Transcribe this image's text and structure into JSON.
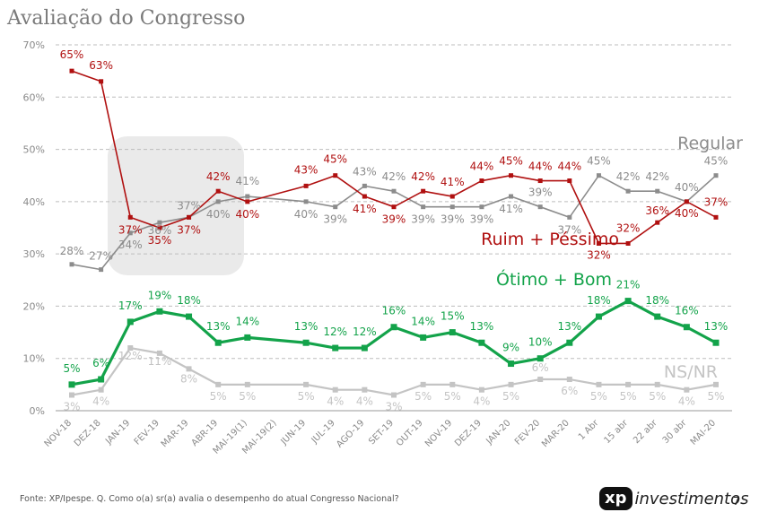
{
  "title": "Avaliação do Congresso",
  "footer": "Fonte: XP/Ipespe. Q. Como o(a) sr(a) avalia o desempenho do atual Congresso Nacional?",
  "logo": {
    "badge": "xp",
    "word": "investimentos"
  },
  "page_number": "7",
  "chart_data": {
    "type": "line",
    "ylim": [
      0,
      70
    ],
    "yticks": [
      0,
      10,
      20,
      30,
      40,
      50,
      60,
      70
    ],
    "ytick_labels": [
      "0%",
      "10%",
      "20%",
      "30%",
      "40%",
      "50%",
      "60%",
      "70%"
    ],
    "grid": "dashed-horizontal",
    "categories": [
      "NOV-18",
      "DEZ-18",
      "JAN-19",
      "FEV-19",
      "MAR-19",
      "ABR-19",
      "MAI-19(1)",
      "MAI-19(2)",
      "JUN-19",
      "JUL-19",
      "AGO-19",
      "SET-19",
      "OUT-19",
      "NOV-19",
      "DEZ-19",
      "JAN-20",
      "FEV-20",
      "MAR-20",
      "1 Abr",
      "15 abr",
      "22 abr",
      "30 abr",
      "MAI-20"
    ],
    "x": [
      0,
      1,
      2,
      3,
      4,
      5,
      6,
      7,
      8,
      9,
      10,
      11,
      12,
      13,
      14,
      15,
      16,
      17,
      18,
      19,
      20,
      21,
      22
    ],
    "series": [
      {
        "name": "Regular",
        "color": "#8c8c8c",
        "x": [
          0,
          1,
          2,
          3,
          4,
          5,
          6,
          8,
          9,
          10,
          11,
          12,
          13,
          14,
          15,
          16,
          17,
          18,
          19,
          20,
          21,
          22
        ],
        "values": [
          28,
          27,
          34,
          36,
          37,
          40,
          41,
          40,
          39,
          43,
          42,
          39,
          39,
          39,
          41,
          39,
          37,
          45,
          42,
          42,
          40,
          45
        ],
        "labels": [
          "28%",
          "27%",
          "34%",
          "36%",
          "37%",
          "40%",
          "41%",
          "40%",
          "39%",
          "43%",
          "42%",
          "39%",
          "39%",
          "39%",
          "41%",
          "39%",
          "37%",
          "45%",
          "42%",
          "42%",
          "40%",
          "45%"
        ]
      },
      {
        "name": "Ruim + Péssimo",
        "color": "#b01010",
        "x": [
          0,
          1,
          2,
          3,
          4,
          5,
          6,
          8,
          9,
          10,
          11,
          12,
          13,
          14,
          15,
          16,
          17,
          18,
          19,
          20,
          21,
          22
        ],
        "values": [
          65,
          63,
          37,
          35,
          37,
          42,
          40,
          43,
          45,
          41,
          39,
          42,
          41,
          44,
          45,
          44,
          44,
          32,
          32,
          36,
          40,
          37
        ],
        "labels": [
          "65%",
          "63%",
          "37%",
          "35%",
          "37%",
          "42%",
          "40%",
          "43%",
          "45%",
          "41%",
          "39%",
          "42%",
          "41%",
          "44%",
          "45%",
          "44%",
          "44%",
          "32%",
          "32%",
          "36%",
          "40%",
          "37%"
        ]
      },
      {
        "name": "Ótimo + Bom",
        "color": "#13a34a",
        "x": [
          0,
          1,
          2,
          3,
          4,
          5,
          6,
          8,
          9,
          10,
          11,
          12,
          13,
          14,
          15,
          16,
          17,
          18,
          19,
          20,
          21,
          22
        ],
        "values": [
          5,
          6,
          17,
          19,
          18,
          13,
          14,
          13,
          12,
          12,
          16,
          14,
          15,
          13,
          9,
          10,
          13,
          18,
          21,
          18,
          16,
          13
        ],
        "labels": [
          "5%",
          "6%",
          "17%",
          "19%",
          "18%",
          "13%",
          "14%",
          "13%",
          "12%",
          "12%",
          "16%",
          "14%",
          "15%",
          "13%",
          "9%",
          "10%",
          "13%",
          "18%",
          "21%",
          "18%",
          "16%",
          "13%"
        ]
      },
      {
        "name": "NS/NR",
        "color": "#c4c4c4",
        "x": [
          0,
          1,
          2,
          3,
          4,
          5,
          6,
          8,
          9,
          10,
          11,
          12,
          13,
          14,
          15,
          16,
          17,
          18,
          19,
          20,
          21,
          22
        ],
        "values": [
          3,
          4,
          12,
          11,
          8,
          5,
          5,
          5,
          4,
          4,
          3,
          5,
          5,
          4,
          5,
          6,
          6,
          5,
          5,
          5,
          4,
          5
        ],
        "labels": [
          "3%",
          "4%",
          "12%",
          "11%",
          "8%",
          "5%",
          "5%",
          "5%",
          "4%",
          "4%",
          "3%",
          "5%",
          "5%",
          "4%",
          "5%",
          "6%",
          "6%",
          "5%",
          "5%",
          "5%",
          "4%",
          "5%"
        ]
      }
    ]
  }
}
